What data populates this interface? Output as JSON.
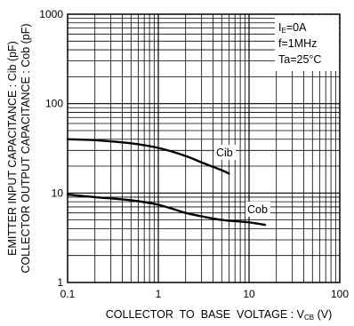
{
  "chart_data": {
    "type": "line",
    "x_scale": "log",
    "y_scale": "log",
    "xlim": [
      0.1,
      100
    ],
    "ylim": [
      1,
      1000
    ],
    "grid": true,
    "x_ticks": [
      "0.1",
      "1",
      "10",
      "100"
    ],
    "y_ticks": [
      "1",
      "10",
      "100",
      "1000"
    ],
    "xlabel": "COLLECTOR  TO  BASE  VOLTAGE : V",
    "xlabel_sub": "CB",
    "xlabel_unit": " (V)",
    "ylabel_line1": "EMITTER INPUT CAPACITANCE : Cib (pF)",
    "ylabel_line2": "COLLECTOR OUTPUT CAPACITANCE : Cob (pF)",
    "conditions": {
      "ie_main": "I",
      "ie_sub": "E",
      "ie_value": "=0A",
      "freq": "f=1MHz",
      "temp": "Ta=25°C"
    },
    "series": [
      {
        "name": "Cib",
        "x": [
          0.1,
          0.2,
          0.5,
          1,
          2,
          3,
          5,
          6
        ],
        "y": [
          40,
          39,
          36,
          32,
          26,
          22,
          18,
          16.5
        ]
      },
      {
        "name": "Cob",
        "x": [
          0.1,
          0.2,
          0.5,
          1,
          2,
          3,
          5,
          10,
          15
        ],
        "y": [
          9.6,
          9,
          8.3,
          7.4,
          6,
          5.5,
          5,
          4.7,
          4.4
        ]
      }
    ]
  }
}
